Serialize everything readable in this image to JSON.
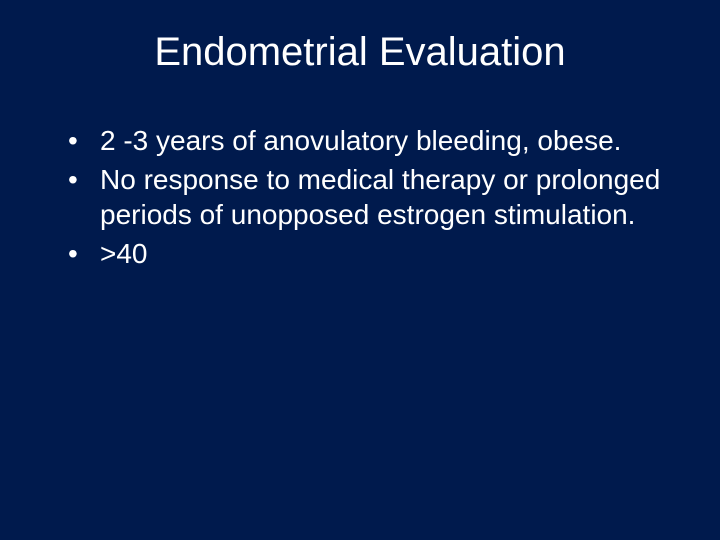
{
  "slide": {
    "title": "Endometrial Evaluation",
    "bullets": [
      "2 -3 years of anovulatory bleeding, obese.",
      "No response to medical therapy or prolonged periods of unopposed estrogen stimulation.",
      ">40"
    ],
    "background_color": "#001a4d",
    "text_color": "#ffffff",
    "title_fontsize": 40,
    "body_fontsize": 28
  }
}
